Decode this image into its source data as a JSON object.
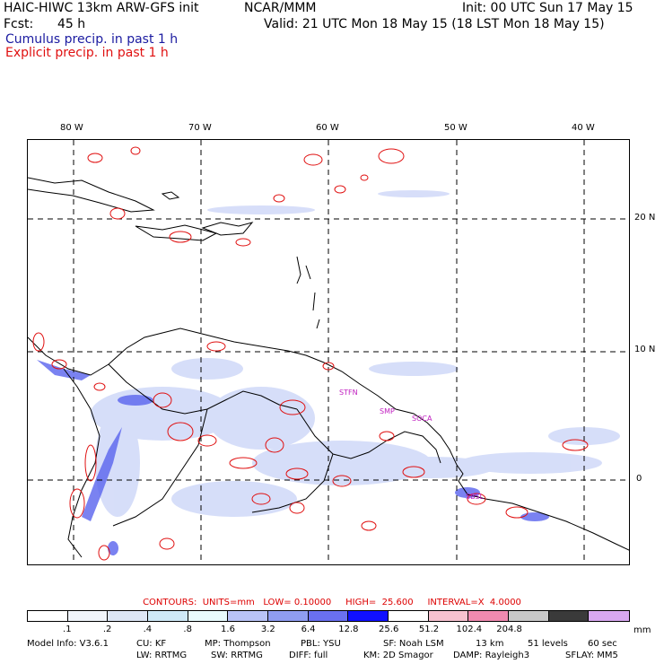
{
  "header": {
    "model": "HAIC-HIWC 13km ARW-GFS init",
    "org": "NCAR/MMM",
    "init": "Init: 00 UTC Sun 17 May 15",
    "fcst_label": "Fcst:",
    "fcst_value": "45 h",
    "valid": "Valid: 21 UTC Mon 18 May 15 (18 LST Mon 18 May 15)"
  },
  "fields": {
    "cumulus": "Cumulus precip. in past 1 h",
    "explicit": "Explicit precip. in past 1 h",
    "cumulus_color": "#1a1aa0",
    "explicit_color": "#e01010"
  },
  "axes": {
    "lon_labels": [
      "80 W",
      "70 W",
      "60 W",
      "50 W",
      "40 W"
    ],
    "lat_labels": [
      "20 N",
      "10 N",
      "0"
    ]
  },
  "stations": [
    "STFN",
    "SMP",
    "SOCA",
    "SBSL"
  ],
  "contours_line": "CONTOURS:  UNITS=mm   LOW= 0.10000     HIGH=  25.600     INTERVAL=X  4.0000",
  "colorbar": {
    "unit": "mm",
    "labels": [
      ".1",
      ".2",
      ".4",
      ".8",
      "1.6",
      "3.2",
      "6.4",
      "12.8",
      "25.6",
      "51.2",
      "102.4",
      "204.8"
    ],
    "colors": [
      "#ffffff",
      "#f0f4fa",
      "#dde6f5",
      "#cfe9f7",
      "#e8fbfd",
      "#b9c3f6",
      "#8f9df1",
      "#6a70f0",
      "#1010ff",
      "#ffffff",
      "#f7c2d0",
      "#f08ab0",
      "#c8c8c8",
      "#3a3a3a",
      "#d8a8f0"
    ]
  },
  "footer": {
    "line1": [
      "Model Info: V3.6.1",
      "CU: KF",
      "MP: Thompson",
      "PBL: YSU",
      "SF: Noah LSM",
      "13 km",
      "51 levels",
      "60 sec"
    ],
    "line2": [
      "LW: RRTMG",
      "SW: RRTMG",
      "DIFF: full",
      "KM: 2D Smagor",
      "DAMP: Rayleigh3",
      "SFLAY: MM5"
    ]
  }
}
